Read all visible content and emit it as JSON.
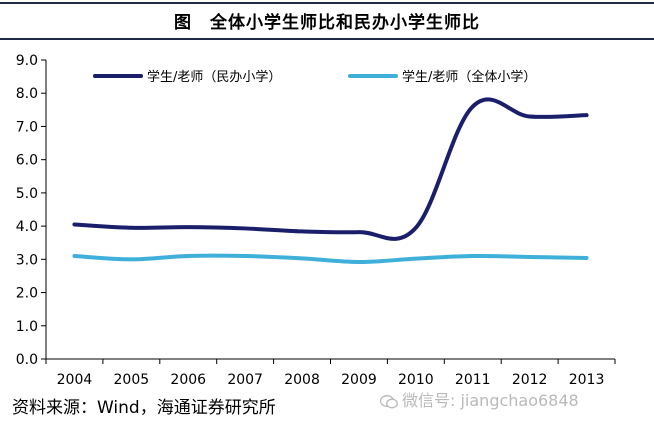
{
  "header": {
    "title": "图　全体小学生师比和民办小学生师比"
  },
  "footer": {
    "source": "资料来源：Wind，海通证券研究所"
  },
  "watermark": {
    "text": "微信号: jiangchao6848",
    "icon": "wechat-icon"
  },
  "chart_data": {
    "type": "line",
    "title": "",
    "xlabel": "",
    "ylabel": "",
    "categories": [
      "2004",
      "2005",
      "2006",
      "2007",
      "2008",
      "2009",
      "2010",
      "2011",
      "2012",
      "2013"
    ],
    "y_ticks": [
      "0.0",
      "1.0",
      "2.0",
      "3.0",
      "4.0",
      "5.0",
      "6.0",
      "7.0",
      "8.0",
      "9.0"
    ],
    "ylim": [
      0,
      9
    ],
    "grid": false,
    "legend_position": "top",
    "series": [
      {
        "name": "学生/老师（民办小学）",
        "color": "#1b1f6b",
        "values": [
          4.05,
          3.95,
          3.97,
          3.93,
          3.84,
          3.82,
          3.95,
          7.6,
          7.3,
          7.34
        ]
      },
      {
        "name": "学生/老师（全体小学）",
        "color": "#3fb0da",
        "values": [
          3.1,
          3.0,
          3.1,
          3.1,
          3.03,
          2.92,
          3.02,
          3.1,
          3.07,
          3.04
        ]
      }
    ]
  }
}
